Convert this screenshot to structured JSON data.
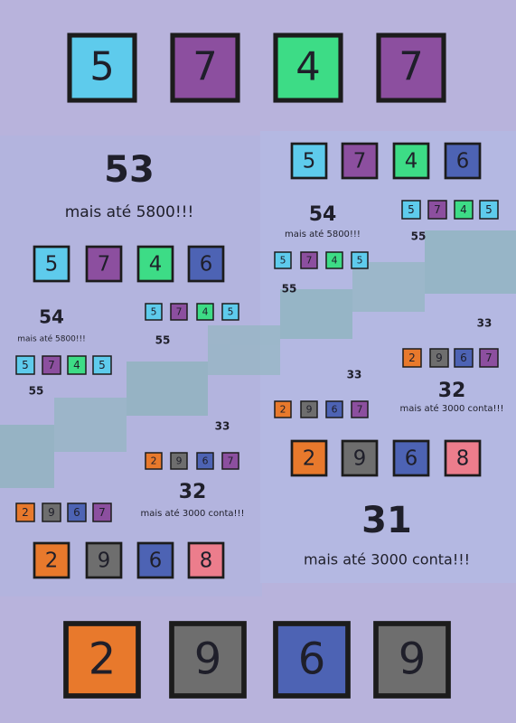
{
  "digit_colors": {
    "2": "#e8792c",
    "4": "#3ddc86",
    "5": "#5ecbec",
    "6": "#4d63b4",
    "7": "#8c4f9f",
    "8": "#ec7d8c",
    "9": "#6e6e6e"
  },
  "box_rows": [
    {
      "digits": [
        "5",
        "7",
        "4",
        "7"
      ]
    },
    {
      "digits": [
        "2",
        "9",
        "6",
        "9"
      ]
    },
    {
      "digits": [
        "5",
        "7",
        "4",
        "6"
      ]
    },
    {
      "digits": [
        "5",
        "7",
        "4",
        "5"
      ]
    },
    {
      "digits": [
        "2",
        "9",
        "6",
        "7"
      ]
    },
    {
      "digits": [
        "2",
        "9",
        "6",
        "8"
      ]
    },
    {
      "digits": [
        "5",
        "7",
        "4",
        "6"
      ]
    },
    {
      "digits": [
        "5",
        "7",
        "4",
        "5"
      ]
    },
    {
      "digits": [
        "2",
        "9",
        "6",
        "7"
      ]
    },
    {
      "digits": [
        "2",
        "9",
        "6",
        "8"
      ]
    },
    {
      "digits": [
        "5",
        "7",
        "4",
        "5"
      ]
    },
    {
      "digits": [
        "2",
        "9",
        "6",
        "7"
      ]
    },
    {
      "digits": [
        "5",
        "7",
        "4",
        "5"
      ]
    },
    {
      "digits": [
        "2",
        "9",
        "6",
        "7"
      ]
    }
  ],
  "texts": [
    "53",
    "mais até 5800!!!",
    "54",
    "mais até 5800!!!",
    "32",
    "mais até 3000 conta!!!",
    "54",
    "mais até 5800!!!",
    "32",
    "mais até 3000 conta!!!",
    "31",
    "mais até 3000 conta!!!",
    "55",
    "55",
    "55",
    "55",
    "33",
    "33",
    "33"
  ]
}
